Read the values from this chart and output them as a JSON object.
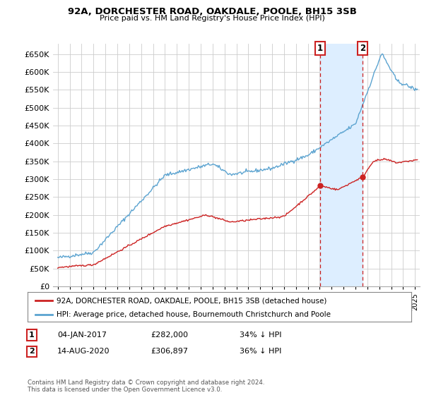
{
  "title": "92A, DORCHESTER ROAD, OAKDALE, POOLE, BH15 3SB",
  "subtitle": "Price paid vs. HM Land Registry's House Price Index (HPI)",
  "legend_line1": "92A, DORCHESTER ROAD, OAKDALE, POOLE, BH15 3SB (detached house)",
  "legend_line2": "HPI: Average price, detached house, Bournemouth Christchurch and Poole",
  "annotation1_date": "04-JAN-2017",
  "annotation1_price": "£282,000",
  "annotation1_hpi": "34% ↓ HPI",
  "annotation2_date": "14-AUG-2020",
  "annotation2_price": "£306,897",
  "annotation2_hpi": "36% ↓ HPI",
  "footer": "Contains HM Land Registry data © Crown copyright and database right 2024.\nThis data is licensed under the Open Government Licence v3.0.",
  "hpi_color": "#5ba3d0",
  "price_color": "#cc2222",
  "background_color": "#ffffff",
  "grid_color": "#cccccc",
  "shade_color": "#ddeeff",
  "ylim": [
    0,
    680000
  ],
  "yticks": [
    0,
    50000,
    100000,
    150000,
    200000,
    250000,
    300000,
    350000,
    400000,
    450000,
    500000,
    550000,
    600000,
    650000
  ],
  "anno1_x": 2017.04,
  "anno1_y": 282000,
  "anno2_x": 2020.62,
  "anno2_y": 306897,
  "xlim_left": 1994.6,
  "xlim_right": 2025.4
}
